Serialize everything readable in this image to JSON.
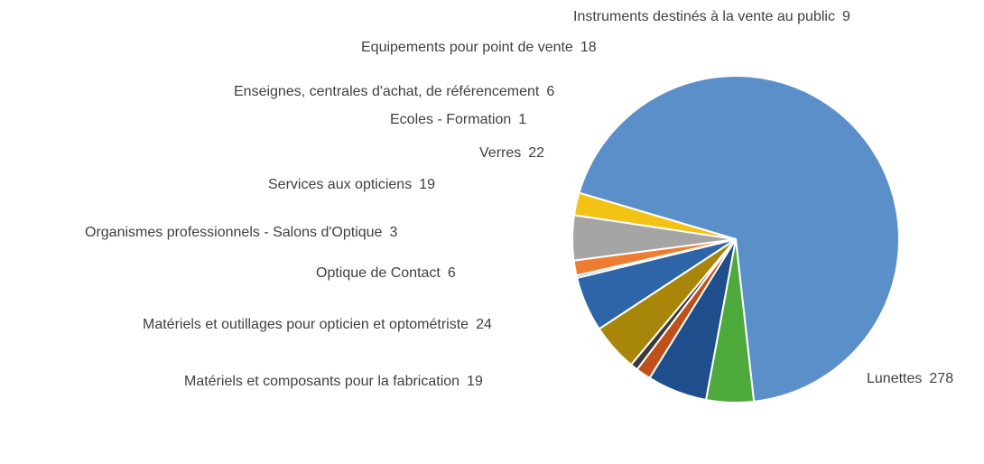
{
  "chart_data": {
    "type": "pie",
    "title": "",
    "legend": "none",
    "slices": [
      {
        "label": "Lunettes",
        "value": 278,
        "color": "#5b8fc9",
        "value_text": "278"
      },
      {
        "label": "Matériels et composants pour la fabrication",
        "value": 19,
        "color": "#4eaa3a",
        "value_text": "19"
      },
      {
        "label": "Matériels et outillages pour opticien et optométriste",
        "value": 24,
        "color": "#1f4e8c",
        "value_text": "24"
      },
      {
        "label": "Optique de Contact",
        "value": 6,
        "color": "#c0501a",
        "value_text": "6"
      },
      {
        "label": "Organismes professionnels - Salons d'Optique",
        "value": 3,
        "color": "#3a3a3a",
        "value_text": "3"
      },
      {
        "label": "Services aux opticiens",
        "value": 19,
        "color": "#a8860a",
        "value_text": "19"
      },
      {
        "label": "Verres",
        "value": 22,
        "color": "#2e64a8",
        "value_text": "22"
      },
      {
        "label": "Ecoles - Formation",
        "value": 1,
        "color": "#6fa0d8",
        "value_text": "1"
      },
      {
        "label": "Enseignes, centrales d'achat, de référencement",
        "value": 6,
        "color": "#ee7d31",
        "value_text": "6"
      },
      {
        "label": "Equipements pour point de vente",
        "value": 18,
        "color": "#a5a5a5",
        "value_text": "18"
      },
      {
        "label": "Instruments destinés à la vente au public",
        "value": 9,
        "color": "#f2c314",
        "value_text": "9"
      }
    ]
  }
}
